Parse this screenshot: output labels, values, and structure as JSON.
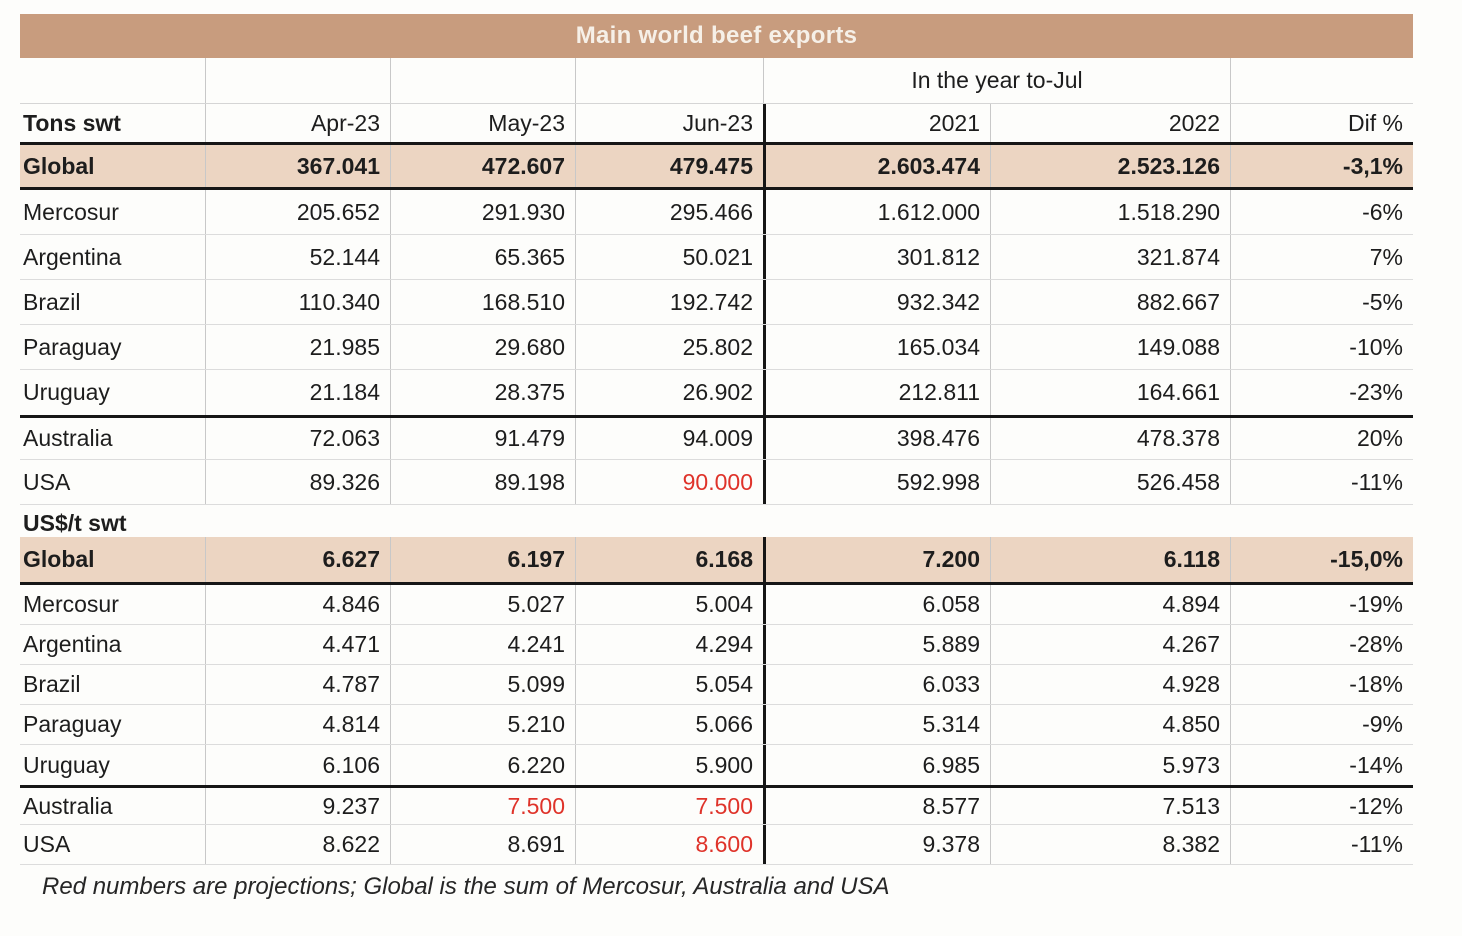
{
  "title": "Main world beef exports",
  "header": {
    "year_span_label": "In the year to-Jul",
    "columns": [
      "Apr-23",
      "May-23",
      "Jun-23",
      "2021",
      "2022",
      "Dif %"
    ]
  },
  "sections": [
    {
      "label": "Tons swt",
      "global": {
        "name": "Global",
        "values": [
          "367.041",
          "472.607",
          "479.475",
          "2.603.474",
          "2.523.126",
          "-3,1%"
        ]
      },
      "rows": [
        {
          "name": "Mercosur",
          "values": [
            "205.652",
            "291.930",
            "295.466",
            "1.612.000",
            "1.518.290",
            "-6%"
          ]
        },
        {
          "name": "Argentina",
          "values": [
            "52.144",
            "65.365",
            "50.021",
            "301.812",
            "321.874",
            "7%"
          ]
        },
        {
          "name": "Brazil",
          "values": [
            "110.340",
            "168.510",
            "192.742",
            "932.342",
            "882.667",
            "-5%"
          ]
        },
        {
          "name": "Paraguay",
          "values": [
            "21.985",
            "29.680",
            "25.802",
            "165.034",
            "149.088",
            "-10%"
          ]
        },
        {
          "name": "Uruguay",
          "values": [
            "21.184",
            "28.375",
            "26.902",
            "212.811",
            "164.661",
            "-23%"
          ]
        },
        {
          "name": "Australia",
          "values": [
            "72.063",
            "91.479",
            "94.009",
            "398.476",
            "478.378",
            "20%"
          ],
          "divider_above": true
        },
        {
          "name": "USA",
          "values": [
            "89.326",
            "89.198",
            "90.000",
            "592.998",
            "526.458",
            "-11%"
          ],
          "projected_cols": [
            2
          ]
        }
      ]
    },
    {
      "label": "US$/t swt",
      "global": {
        "name": "Global",
        "values": [
          "6.627",
          "6.197",
          "6.168",
          "7.200",
          "6.118",
          "-15,0%"
        ]
      },
      "rows": [
        {
          "name": "Mercosur",
          "values": [
            "4.846",
            "5.027",
            "5.004",
            "6.058",
            "4.894",
            "-19%"
          ]
        },
        {
          "name": "Argentina",
          "values": [
            "4.471",
            "4.241",
            "4.294",
            "5.889",
            "4.267",
            "-28%"
          ]
        },
        {
          "name": "Brazil",
          "values": [
            "4.787",
            "5.099",
            "5.054",
            "6.033",
            "4.928",
            "-18%"
          ]
        },
        {
          "name": "Paraguay",
          "values": [
            "4.814",
            "5.210",
            "5.066",
            "5.314",
            "4.850",
            "-9%"
          ]
        },
        {
          "name": "Uruguay",
          "values": [
            "6.106",
            "6.220",
            "5.900",
            "6.985",
            "5.973",
            "-14%"
          ]
        },
        {
          "name": "Australia",
          "values": [
            "9.237",
            "7.500",
            "7.500",
            "8.577",
            "7.513",
            "-12%"
          ],
          "divider_above": true,
          "projected_cols": [
            1,
            2
          ]
        },
        {
          "name": "USA",
          "values": [
            "8.622",
            "8.691",
            "8.600",
            "9.378",
            "8.382",
            "-11%"
          ],
          "projected_cols": [
            2
          ]
        }
      ]
    }
  ],
  "footer": "Red numbers are projections; Global is the sum of Mercosur, Australia and USA",
  "colors": {
    "title_bg": "#c89c7e",
    "highlight_bg": "#ecd5c2",
    "projection_red": "#df332a"
  }
}
